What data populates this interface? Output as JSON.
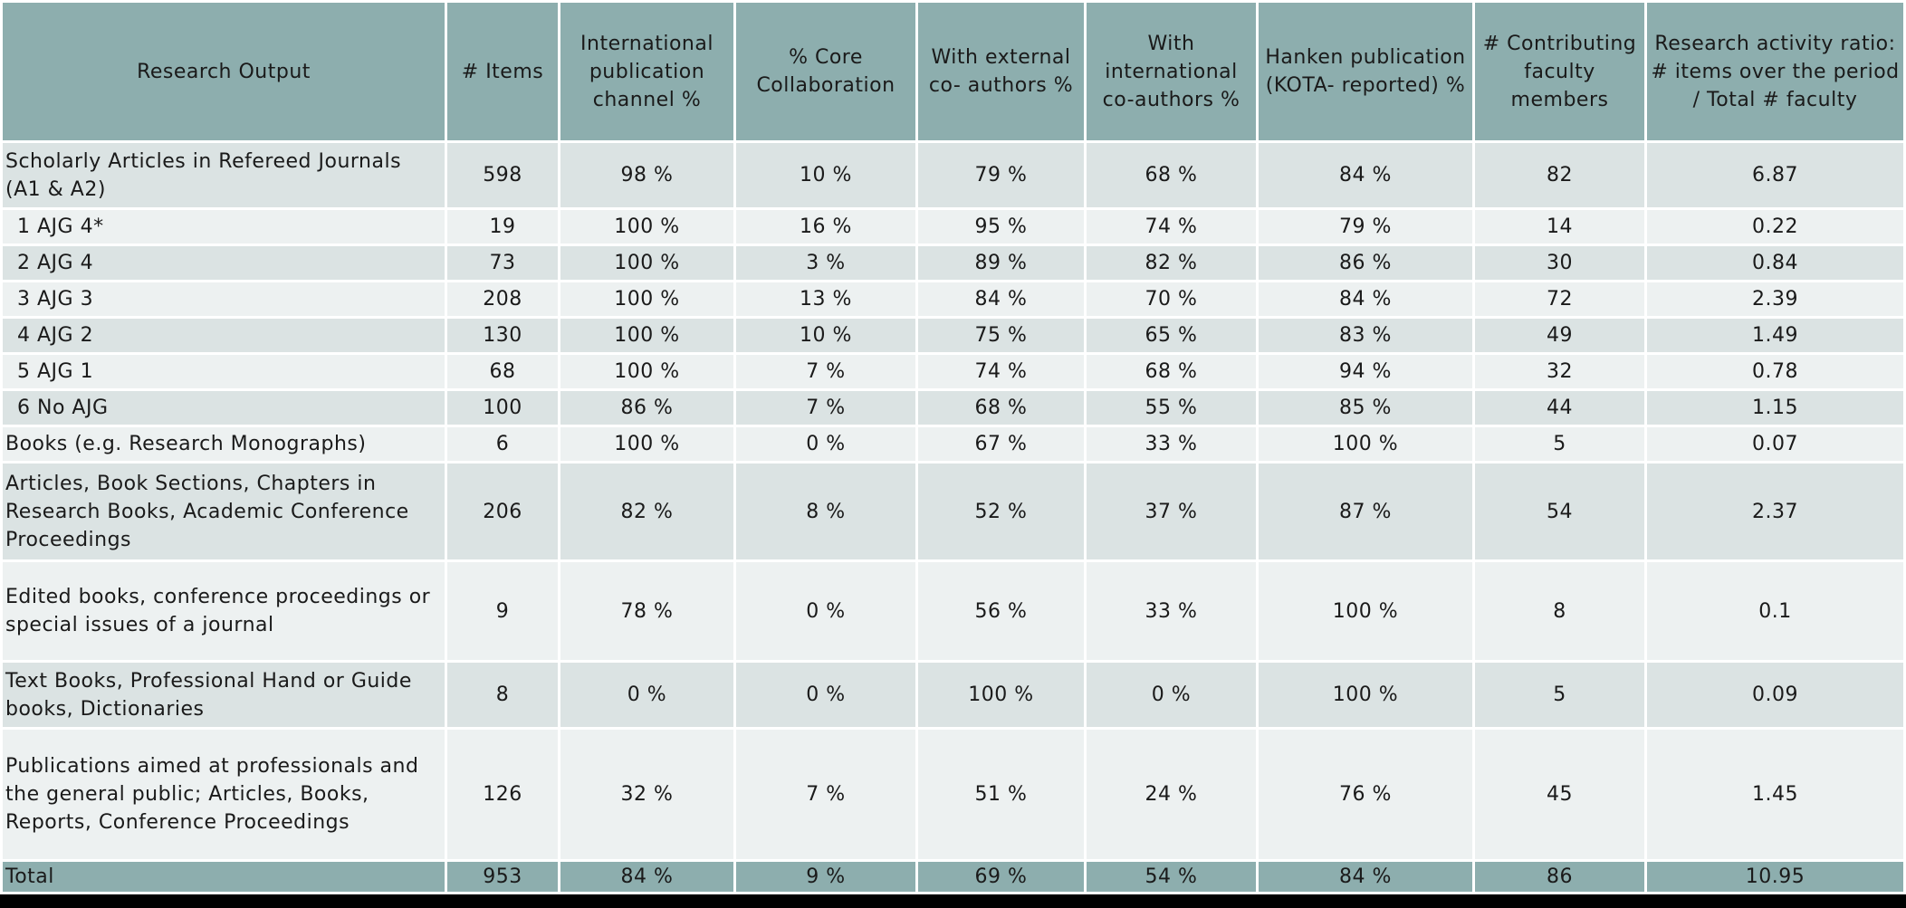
{
  "table": {
    "header": [
      "Research Output",
      "# Items",
      "International publication channel %",
      "% Core Collaboration",
      "With external co- authors %",
      "With international co-authors %",
      "Hanken publication (KOTA- reported) %",
      "# Contributing faculty members",
      "Research activity ratio: # items over the period / Total # faculty"
    ],
    "rows": [
      [
        "Scholarly Articles in Refereed Journals (A1 & A2)",
        "598",
        "98 %",
        "10 %",
        "79 %",
        "68 %",
        "84 %",
        "82",
        "6.87"
      ],
      [
        "1 AJG 4*",
        "19",
        "100 %",
        "16 %",
        "95 %",
        "74 %",
        "79 %",
        "14",
        "0.22"
      ],
      [
        "2 AJG 4",
        "73",
        "100 %",
        "3 %",
        "89 %",
        "82 %",
        "86 %",
        "30",
        "0.84"
      ],
      [
        "3 AJG 3",
        "208",
        "100 %",
        "13 %",
        "84 %",
        "70 %",
        "84 %",
        "72",
        "2.39"
      ],
      [
        "4 AJG 2",
        "130",
        "100 %",
        "10 %",
        "75 %",
        "65 %",
        "83 %",
        "49",
        "1.49"
      ],
      [
        "5 AJG 1",
        "68",
        "100 %",
        "7 %",
        "74 %",
        "68 %",
        "94 %",
        "32",
        "0.78"
      ],
      [
        "6 No AJG",
        "100",
        "86 %",
        "7 %",
        "68 %",
        "55 %",
        "85 %",
        "44",
        "1.15"
      ],
      [
        "Books (e.g. Research Monographs)",
        "6",
        "100 %",
        "0 %",
        "67 %",
        "33 %",
        "100 %",
        "5",
        "0.07"
      ],
      [
        "Articles, Book Sections, Chapters in Research Books, Academic Conference Proceedings",
        "206",
        "82 %",
        "8 %",
        "52 %",
        "37 %",
        "87 %",
        "54",
        "2.37"
      ],
      [
        "Edited books, conference proceedings or special issues of a journal",
        "9",
        "78 %",
        "0 %",
        "56 %",
        "33 %",
        "100 %",
        "8",
        "0.1"
      ],
      [
        "Text Books, Professional Hand or Guide books, Dictionaries",
        "8",
        "0 %",
        "0 %",
        "100 %",
        "0 %",
        "100 %",
        "5",
        "0.09"
      ],
      [
        "Publications aimed at professionals and the general public; Articles, Books, Reports, Conference Proceedings",
        "126",
        "32 %",
        "7 %",
        "51 %",
        "24 %",
        "76 %",
        "45",
        "1.45"
      ]
    ],
    "total": [
      "Total",
      "953",
      "84 %",
      "9 %",
      "69 %",
      "54 %",
      "84 %",
      "86",
      "10.95"
    ]
  }
}
